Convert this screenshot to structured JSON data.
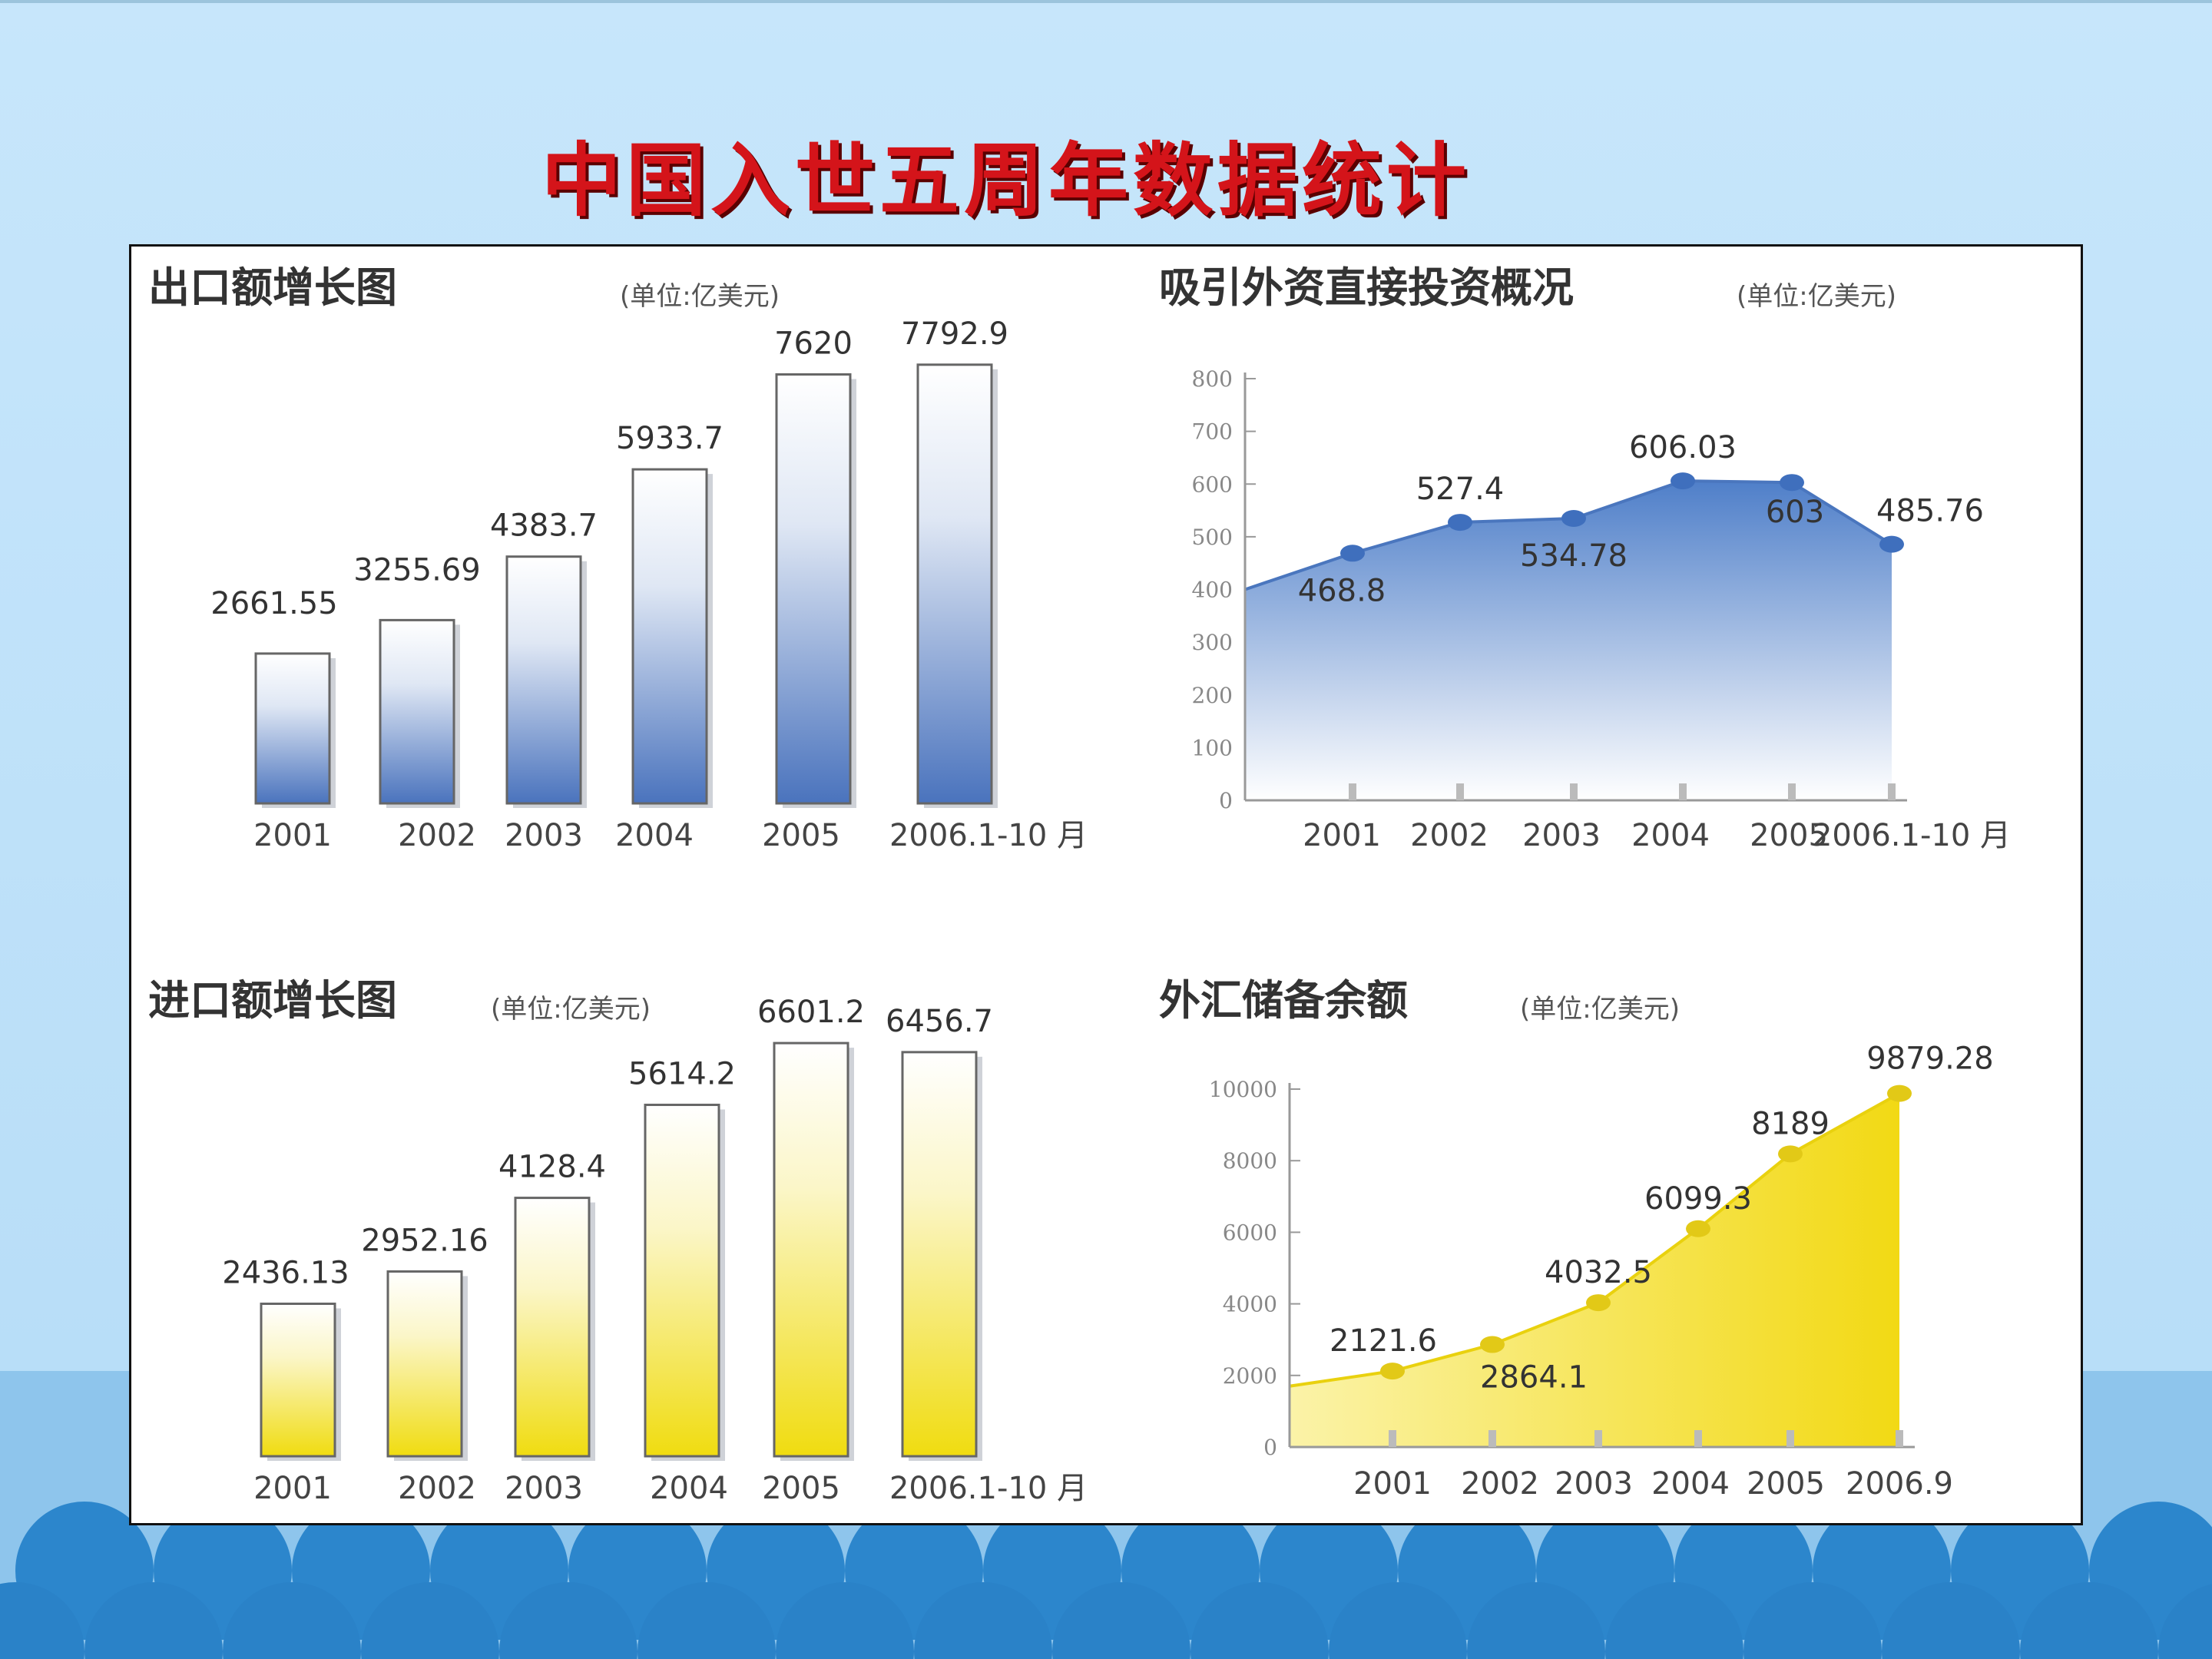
{
  "slide": {
    "title": "中国入世五周年数据统计"
  },
  "chart_data": [
    {
      "id": "export",
      "type": "bar",
      "title": "出口额增长图",
      "unit": "(单位:亿美元)",
      "categories": [
        "2001",
        "2002",
        "2003",
        "2004",
        "2005",
        "2006.1-10 月"
      ],
      "values": [
        2661.55,
        3255.69,
        4383.7,
        5933.7,
        7620,
        7792.9
      ],
      "value_labels": [
        "2661.55",
        "3255.69",
        "4383.7",
        "5933.7",
        "7620",
        "7792.9"
      ],
      "ylim": [
        0,
        8500
      ],
      "color": "#4f78bf"
    },
    {
      "id": "fdi",
      "type": "area",
      "title": "吸引外资直接投资概况",
      "unit": "(单位:亿美元)",
      "categories": [
        "2001",
        "2002",
        "2003",
        "2004",
        "2005",
        "2006.1-10 月"
      ],
      "values": [
        468.8,
        527.4,
        534.78,
        606.03,
        603,
        485.76
      ],
      "value_labels": [
        "468.8",
        "527.4",
        "534.78",
        "606.03",
        "603",
        "485.76"
      ],
      "yticks": [
        0,
        100,
        200,
        300,
        400,
        500,
        600,
        700,
        800
      ],
      "ylim": [
        0,
        800
      ],
      "color": "#4f7fc9"
    },
    {
      "id": "import",
      "type": "bar",
      "title": "进口额增长图",
      "unit": "(单位:亿美元)",
      "categories": [
        "2001",
        "2002",
        "2003",
        "2004",
        "2005",
        "2006.1-10 月"
      ],
      "values": [
        2436.13,
        2952.16,
        4128.4,
        5614.2,
        6601.2,
        6456.7
      ],
      "value_labels": [
        "2436.13",
        "2952.16",
        "4128.4",
        "5614.2",
        "6601.2",
        "6456.7"
      ],
      "ylim": [
        0,
        7400
      ],
      "color": "#f2e11c"
    },
    {
      "id": "reserve",
      "type": "area",
      "title": "外汇储备余额",
      "unit": "(单位:亿美元)",
      "categories": [
        "2001",
        "2002",
        "2003",
        "2004",
        "2005",
        "2006.9"
      ],
      "values": [
        2121.6,
        2864.1,
        4032.5,
        6099.3,
        8189,
        9879.28
      ],
      "value_labels": [
        "2121.6",
        "2864.1",
        "4032.5",
        "6099.3",
        "8189",
        "9879.28"
      ],
      "yticks": [
        0,
        2000,
        4000,
        6000,
        8000,
        10000
      ],
      "ylim": [
        0,
        10000
      ],
      "color": "#f2e11c"
    }
  ]
}
